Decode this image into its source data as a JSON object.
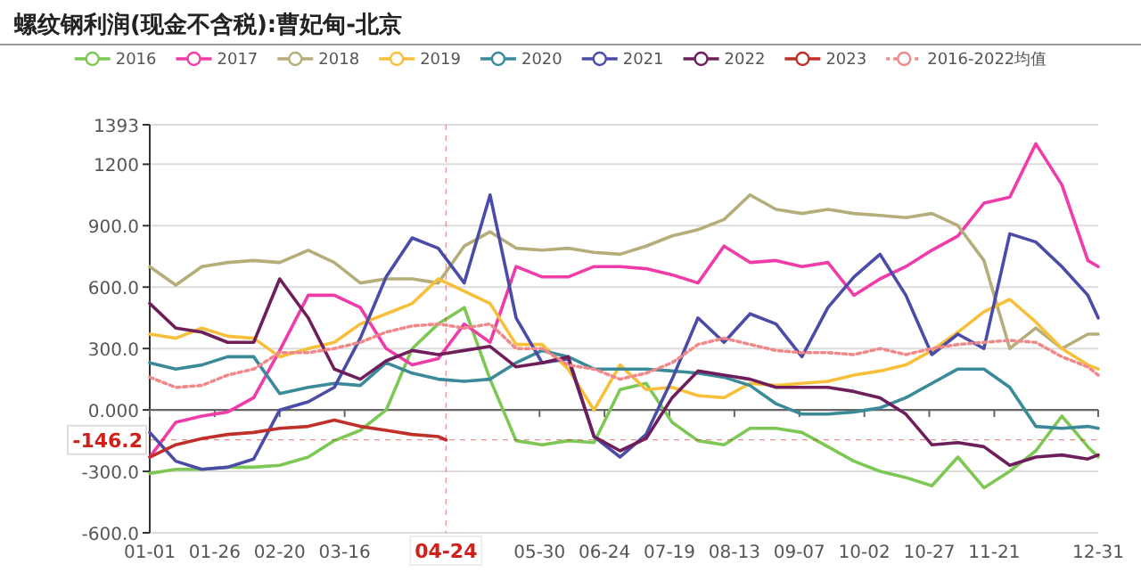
{
  "chart_data": {
    "type": "line",
    "title": "螺纹钢利润(现金不含税):曹妃甸-北京",
    "x": [
      "--01-01",
      "--01-11",
      "--01-21",
      "--01-31",
      "--02-10",
      "--02-20",
      "--03-02",
      "--03-12",
      "--03-22",
      "--04-01",
      "--04-11",
      "--04-21",
      "--05-01",
      "--05-11",
      "--05-21",
      "--05-31",
      "--06-10",
      "--06-20",
      "--06-30",
      "--07-10",
      "--07-20",
      "--07-30",
      "--08-09",
      "--08-19",
      "--08-29",
      "--09-08",
      "--09-18",
      "--09-28",
      "--10-08",
      "--10-18",
      "--10-28",
      "--11-07",
      "--11-17",
      "--11-27",
      "--12-07",
      "--12-17",
      "--12-27",
      "--12-31"
    ],
    "series": [
      {
        "name": "2016",
        "color": "#7dc855",
        "values": [
          -310,
          -290,
          -290,
          -280,
          -280,
          -270,
          -230,
          -150,
          -100,
          0,
          300,
          420,
          500,
          150,
          -150,
          -170,
          -150,
          -160,
          100,
          130,
          -60,
          -150,
          -170,
          -90,
          -90,
          -110,
          -180,
          -250,
          -300,
          -330,
          -370,
          -230,
          -380,
          -300,
          -200,
          -30,
          -180,
          -230
        ]
      },
      {
        "name": "2017",
        "color": "#f03ca8",
        "values": [
          -230,
          -60,
          -30,
          -10,
          60,
          290,
          560,
          560,
          500,
          300,
          220,
          250,
          420,
          330,
          700,
          650,
          650,
          700,
          700,
          690,
          660,
          620,
          800,
          720,
          730,
          700,
          720,
          560,
          640,
          700,
          780,
          850,
          1010,
          1040,
          1300,
          1100,
          730,
          700
        ]
      },
      {
        "name": "2018",
        "color": "#b5ad7a",
        "values": [
          700,
          610,
          700,
          720,
          730,
          720,
          780,
          720,
          620,
          640,
          640,
          620,
          800,
          870,
          790,
          780,
          790,
          770,
          760,
          800,
          850,
          880,
          930,
          1050,
          980,
          960,
          980,
          960,
          950,
          940,
          960,
          900,
          730,
          300,
          400,
          300,
          370,
          370
        ]
      },
      {
        "name": "2019",
        "color": "#f8c03a",
        "values": [
          370,
          350,
          400,
          360,
          350,
          260,
          300,
          330,
          420,
          470,
          520,
          640,
          580,
          520,
          320,
          320,
          200,
          0,
          220,
          100,
          110,
          70,
          60,
          130,
          120,
          130,
          140,
          170,
          190,
          220,
          290,
          380,
          480,
          540,
          430,
          300,
          220,
          200
        ]
      },
      {
        "name": "2020",
        "color": "#3a8a9a",
        "values": [
          230,
          200,
          220,
          260,
          260,
          80,
          110,
          130,
          120,
          230,
          180,
          150,
          140,
          150,
          230,
          290,
          260,
          200,
          200,
          200,
          190,
          180,
          160,
          120,
          30,
          -20,
          -20,
          -10,
          10,
          60,
          130,
          200,
          200,
          110,
          -80,
          -90,
          -80,
          -90
        ]
      },
      {
        "name": "2021",
        "color": "#4b4ba8",
        "values": [
          -110,
          -250,
          -290,
          -280,
          -240,
          0,
          40,
          110,
          350,
          650,
          840,
          790,
          620,
          1050,
          450,
          230,
          250,
          -130,
          -230,
          -120,
          150,
          450,
          330,
          470,
          420,
          260,
          500,
          650,
          760,
          560,
          270,
          370,
          300,
          860,
          820,
          700,
          560,
          450
        ]
      },
      {
        "name": "2022",
        "color": "#6e1e5a",
        "values": [
          520,
          400,
          380,
          330,
          330,
          640,
          450,
          200,
          150,
          240,
          290,
          270,
          290,
          310,
          210,
          230,
          260,
          -130,
          -200,
          -140,
          60,
          190,
          170,
          150,
          110,
          110,
          110,
          90,
          60,
          -20,
          -170,
          -160,
          -180,
          -270,
          -230,
          -220,
          -240,
          -220
        ]
      },
      {
        "name": "2023",
        "color": "#c0302a",
        "x": [
          "--01-01",
          "--01-11",
          "--01-21",
          "--01-31",
          "--02-10",
          "--02-20",
          "--03-02",
          "--03-12",
          "--03-22",
          "--04-01",
          "--04-11",
          "--04-21",
          "--04-24"
        ],
        "values": [
          -230,
          -170,
          -140,
          -120,
          -110,
          -90,
          -80,
          -50,
          -80,
          -100,
          -120,
          -130,
          -146.2
        ]
      },
      {
        "name": "2016-2022均值",
        "color": "#f08a8a",
        "line_style": "dotted",
        "values": [
          160,
          110,
          120,
          170,
          200,
          280,
          280,
          300,
          330,
          380,
          410,
          420,
          400,
          420,
          300,
          300,
          220,
          200,
          150,
          180,
          230,
          320,
          350,
          320,
          290,
          280,
          280,
          270,
          300,
          270,
          300,
          320,
          330,
          340,
          330,
          260,
          210,
          170
        ]
      }
    ],
    "xlim": [
      "--01-01",
      "--12-31"
    ],
    "xticks": [
      {
        "value": "--01-01",
        "label": "01-01"
      },
      {
        "value": "--01-26",
        "label": "01-26"
      },
      {
        "value": "--02-20",
        "label": "02-20"
      },
      {
        "value": "--03-16",
        "label": "03-16"
      },
      {
        "value": "--05-30",
        "label": "05-30"
      },
      {
        "value": "--06-24",
        "label": "06-24"
      },
      {
        "value": "--07-19",
        "label": "07-19"
      },
      {
        "value": "--08-13",
        "label": "08-13"
      },
      {
        "value": "--09-07",
        "label": "09-07"
      },
      {
        "value": "--10-02",
        "label": "10-02"
      },
      {
        "value": "--10-27",
        "label": "10-27"
      },
      {
        "value": "--11-21",
        "label": "11-21"
      },
      {
        "value": "--12-31",
        "label": "12-31"
      }
    ],
    "ylim": [
      -600,
      1393
    ],
    "yticks": [
      1393,
      1200,
      {
        "value": 900,
        "label": "900.0"
      },
      {
        "value": 600,
        "label": "600.0"
      },
      {
        "value": 300,
        "label": "300.0"
      },
      {
        "value": 0,
        "label": "0.000"
      },
      {
        "value": -300,
        "label": "-300.0"
      },
      {
        "value": -600,
        "label": "-600.0"
      }
    ],
    "ref_lines": [
      {
        "axis": "x",
        "value": "--04-24",
        "label": "04-24",
        "color": "#d0201a"
      },
      {
        "axis": "y",
        "value": -146.2,
        "label": "-146.2",
        "color": "#d0201a"
      }
    ],
    "grid": "y",
    "legend": "top",
    "line_style": "solid",
    "marker": "none"
  }
}
